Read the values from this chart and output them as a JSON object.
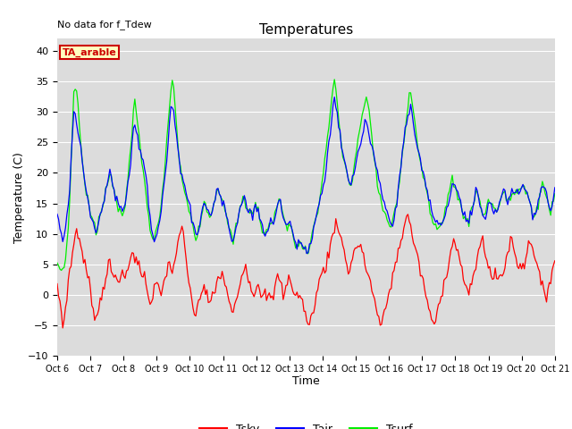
{
  "title": "Temperatures",
  "xlabel": "Time",
  "ylabel": "Temperature (C)",
  "annotation": "No data for f_Tdew",
  "box_label": "TA_arable",
  "ylim": [
    -10,
    42
  ],
  "yticks": [
    -10,
    -5,
    0,
    5,
    10,
    15,
    20,
    25,
    30,
    35,
    40
  ],
  "x_tick_labels": [
    "Oct 6",
    "Oct 7",
    "Oct 8",
    "Oct 9",
    "Oct 10",
    "Oct 11",
    "Oct 12",
    "Oct 13",
    "Oct 14",
    "Oct 15",
    "Oct 16",
    "Oct 17",
    "Oct 18",
    "Oct 19",
    "Oct 20",
    "Oct 21"
  ],
  "bg_color": "#dcdcdc",
  "fig_color": "#ffffff",
  "tsky_color": "#ff0000",
  "tair_color": "#0000ff",
  "tsurf_color": "#00ee00",
  "grid_color": "#ffffff",
  "tsky_data": [
    1,
    0,
    -1,
    -3,
    -5,
    -4,
    -2,
    0,
    2,
    4,
    5,
    7,
    8,
    10,
    11,
    10,
    9,
    8,
    7,
    6,
    5,
    4,
    3,
    2,
    1,
    -1,
    -2,
    -3,
    -4,
    -3,
    -2,
    -1,
    0,
    1,
    2,
    3,
    4,
    5,
    5,
    4,
    3,
    3,
    3,
    3,
    3,
    3,
    3,
    3,
    3,
    3,
    3,
    4,
    5,
    6,
    7,
    7,
    6,
    6,
    5,
    5,
    4,
    4,
    3,
    3,
    2,
    1,
    0,
    -1,
    -1,
    0,
    1,
    2,
    2,
    1,
    0,
    0,
    1,
    2,
    3,
    4,
    5,
    5,
    4,
    4,
    5,
    6,
    7,
    8,
    9,
    10,
    11,
    10,
    8,
    6,
    4,
    2,
    0,
    -1,
    -2,
    -3,
    -3,
    -2,
    -1,
    0,
    0,
    1,
    1,
    0,
    0,
    -1,
    -1,
    -1,
    0,
    0,
    1,
    2,
    3,
    3,
    3,
    3,
    3,
    2,
    1,
    0,
    -1,
    -2,
    -3,
    -3,
    -2,
    -1,
    0,
    1,
    2,
    3,
    4,
    5,
    5,
    4,
    3,
    2,
    1,
    0,
    0,
    1,
    2,
    2,
    1,
    0,
    0,
    1,
    1,
    0,
    0,
    0,
    -1,
    -1,
    0,
    1,
    2,
    3,
    3,
    2,
    1,
    0,
    0,
    1,
    2,
    3,
    3,
    2,
    1,
    0,
    0,
    0,
    0,
    0,
    -1,
    -1,
    -2,
    -3,
    -4,
    -5,
    -5,
    -4,
    -3,
    -2,
    -1,
    0,
    1,
    2,
    3,
    4,
    4,
    4,
    5,
    6,
    7,
    8,
    9,
    10,
    11,
    12,
    12,
    11,
    10,
    9,
    8,
    7,
    6,
    5,
    4,
    4,
    5,
    6,
    7,
    8,
    8,
    8,
    8,
    8,
    7,
    6,
    5,
    4,
    4,
    3,
    2,
    1,
    0,
    -1,
    -2,
    -3,
    -4,
    -5,
    -5,
    -4,
    -3,
    -2,
    -1,
    0,
    1,
    2,
    3,
    4,
    5,
    6,
    7,
    8,
    9,
    10,
    11,
    12,
    13,
    13,
    12,
    11,
    10,
    9,
    8,
    7,
    6,
    5,
    4,
    3,
    2,
    1,
    0,
    -1,
    -2,
    -3,
    -4,
    -5,
    -5,
    -4,
    -3,
    -2,
    -1,
    0,
    1,
    2,
    3,
    4,
    5,
    6,
    7,
    8,
    9,
    9,
    8,
    7,
    6,
    5,
    4,
    3,
    2,
    1,
    0,
    0,
    1,
    2,
    3,
    4,
    5,
    6,
    7,
    8,
    9,
    9,
    8,
    7,
    6,
    5,
    4,
    3,
    3,
    3,
    3,
    3,
    3,
    3,
    3,
    3,
    4,
    5,
    6,
    7,
    8,
    9,
    9,
    8,
    7,
    6,
    5,
    5,
    5,
    5,
    5,
    5,
    6,
    7,
    8,
    9,
    9,
    8,
    7,
    6,
    5,
    4,
    3,
    2,
    1,
    0,
    0,
    0,
    1,
    2,
    3,
    4,
    5,
    6
  ],
  "tair_data": [
    13,
    12,
    11,
    10,
    9,
    10,
    11,
    13,
    15,
    18,
    22,
    27,
    30,
    29,
    28,
    27,
    26,
    24,
    22,
    20,
    18,
    17,
    16,
    15,
    14,
    13,
    12,
    11,
    10,
    11,
    12,
    13,
    14,
    15,
    16,
    17,
    18,
    19,
    20,
    19,
    18,
    17,
    16,
    16,
    15,
    15,
    14,
    14,
    14,
    15,
    16,
    18,
    20,
    22,
    25,
    27,
    28,
    27,
    26,
    25,
    24,
    23,
    22,
    21,
    20,
    18,
    15,
    13,
    11,
    10,
    9,
    9,
    10,
    11,
    12,
    14,
    16,
    18,
    20,
    22,
    25,
    28,
    30,
    31,
    30,
    28,
    26,
    24,
    22,
    21,
    20,
    19,
    18,
    17,
    16,
    15,
    14,
    13,
    12,
    11,
    10,
    10,
    11,
    12,
    13,
    14,
    15,
    15,
    14,
    14,
    13,
    13,
    14,
    15,
    16,
    17,
    17,
    17,
    16,
    15,
    15,
    14,
    13,
    12,
    11,
    10,
    9,
    9,
    10,
    11,
    12,
    13,
    14,
    15,
    16,
    16,
    15,
    14,
    14,
    14,
    13,
    13,
    14,
    15,
    14,
    14,
    13,
    12,
    11,
    10,
    10,
    11,
    11,
    12,
    12,
    12,
    12,
    13,
    14,
    15,
    16,
    15,
    14,
    13,
    12,
    11,
    11,
    12,
    12,
    11,
    10,
    9,
    9,
    8,
    9,
    9,
    8,
    8,
    8,
    8,
    7,
    7,
    8,
    9,
    10,
    11,
    12,
    13,
    14,
    15,
    16,
    17,
    18,
    19,
    21,
    23,
    25,
    27,
    29,
    31,
    32,
    31,
    30,
    28,
    26,
    24,
    23,
    22,
    21,
    20,
    19,
    18,
    18,
    19,
    20,
    21,
    22,
    23,
    24,
    25,
    26,
    27,
    28,
    28,
    27,
    26,
    25,
    24,
    23,
    22,
    21,
    20,
    19,
    18,
    17,
    16,
    15,
    14,
    13,
    13,
    12,
    12,
    12,
    13,
    14,
    15,
    17,
    19,
    21,
    23,
    25,
    27,
    28,
    29,
    30,
    31,
    30,
    28,
    26,
    25,
    24,
    23,
    22,
    21,
    20,
    19,
    18,
    17,
    16,
    15,
    14,
    13,
    12,
    12,
    12,
    12,
    12,
    12,
    12,
    12,
    13,
    14,
    15,
    16,
    17,
    18,
    18,
    18,
    17,
    17,
    16,
    15,
    14,
    13,
    13,
    12,
    12,
    12,
    13,
    14,
    15,
    16,
    17,
    17,
    16,
    15,
    14,
    13,
    13,
    13,
    14,
    15,
    15,
    15,
    14,
    14,
    14,
    14,
    14,
    15,
    16,
    17,
    17,
    17,
    16,
    16,
    16,
    16,
    17,
    17,
    17,
    17,
    17,
    17,
    17,
    18,
    18,
    18,
    17,
    17,
    16,
    15,
    14,
    13,
    13,
    13,
    14,
    15,
    16,
    17,
    18,
    18,
    17,
    16,
    15,
    14,
    14,
    15,
    16,
    17
  ],
  "tsurf_data": [
    6,
    5,
    5,
    4,
    4,
    5,
    6,
    8,
    11,
    16,
    22,
    28,
    33,
    34,
    33,
    31,
    28,
    25,
    22,
    20,
    18,
    17,
    16,
    15,
    14,
    13,
    12,
    11,
    10,
    11,
    12,
    13,
    14,
    15,
    16,
    17,
    18,
    19,
    20,
    19,
    18,
    17,
    16,
    15,
    14,
    14,
    13,
    13,
    14,
    15,
    17,
    19,
    22,
    24,
    27,
    30,
    32,
    30,
    28,
    26,
    24,
    22,
    20,
    19,
    17,
    15,
    13,
    11,
    10,
    9,
    9,
    10,
    11,
    12,
    13,
    15,
    17,
    19,
    22,
    25,
    28,
    31,
    34,
    35,
    34,
    31,
    28,
    25,
    22,
    21,
    19,
    18,
    17,
    16,
    15,
    14,
    13,
    12,
    11,
    10,
    9,
    10,
    11,
    12,
    13,
    14,
    15,
    15,
    14,
    14,
    13,
    13,
    14,
    15,
    16,
    17,
    17,
    17,
    16,
    15,
    15,
    14,
    13,
    12,
    11,
    10,
    9,
    9,
    10,
    11,
    12,
    13,
    14,
    15,
    16,
    16,
    15,
    14,
    14,
    13,
    13,
    13,
    14,
    15,
    14,
    14,
    13,
    12,
    11,
    10,
    10,
    11,
    11,
    12,
    12,
    12,
    12,
    13,
    14,
    15,
    16,
    15,
    14,
    13,
    12,
    11,
    11,
    12,
    12,
    11,
    10,
    9,
    8,
    8,
    8,
    9,
    8,
    8,
    8,
    7,
    7,
    7,
    8,
    9,
    10,
    11,
    12,
    13,
    14,
    15,
    16,
    18,
    20,
    22,
    24,
    26,
    28,
    30,
    32,
    34,
    35,
    33,
    31,
    29,
    27,
    25,
    23,
    22,
    21,
    20,
    19,
    18,
    18,
    19,
    20,
    22,
    24,
    26,
    27,
    28,
    29,
    30,
    31,
    32,
    31,
    30,
    28,
    26,
    24,
    22,
    20,
    18,
    17,
    16,
    15,
    14,
    13,
    13,
    12,
    12,
    11,
    11,
    12,
    13,
    14,
    15,
    17,
    19,
    21,
    23,
    25,
    27,
    29,
    31,
    33,
    33,
    32,
    30,
    28,
    26,
    24,
    23,
    22,
    21,
    19,
    18,
    17,
    16,
    15,
    14,
    13,
    12,
    11,
    11,
    11,
    11,
    11,
    12,
    12,
    13,
    14,
    15,
    16,
    17,
    18,
    19,
    18,
    18,
    17,
    16,
    16,
    15,
    14,
    13,
    13,
    12,
    12,
    12,
    13,
    14,
    15,
    16,
    17,
    17,
    16,
    15,
    14,
    13,
    13,
    13,
    14,
    15,
    15,
    15,
    14,
    14,
    14,
    14,
    14,
    15,
    16,
    17,
    17,
    17,
    16,
    16,
    16,
    16,
    17,
    17,
    17,
    17,
    17,
    17,
    17,
    18,
    18,
    18,
    17,
    17,
    16,
    15,
    14,
    13,
    13,
    13,
    14,
    15,
    16,
    17,
    18,
    18,
    17,
    16,
    15,
    14,
    14,
    15,
    16,
    17
  ]
}
